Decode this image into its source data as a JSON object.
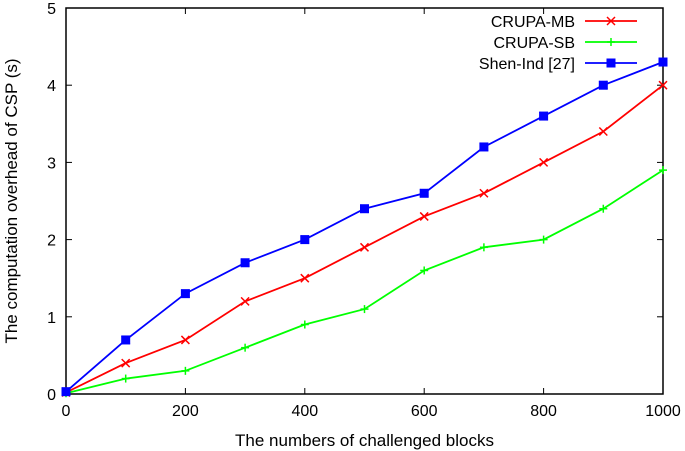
{
  "chart_data": {
    "type": "line",
    "title": "",
    "xlabel": "The numbers of challenged  blocks",
    "ylabel": "The computation overhead of CSP  (s)",
    "xlim": [
      0,
      1000
    ],
    "ylim": [
      0,
      5
    ],
    "xticks": [
      0,
      200,
      400,
      600,
      800,
      1000
    ],
    "yticks": [
      0,
      1,
      2,
      3,
      4,
      5
    ],
    "grid": false,
    "legend_position": "top-right",
    "x": [
      0,
      100,
      200,
      300,
      400,
      500,
      600,
      700,
      800,
      900,
      1000
    ],
    "series": [
      {
        "name": "CRUPA-MB",
        "color": "#ff0000",
        "marker": "x",
        "values": [
          0.02,
          0.4,
          0.7,
          1.2,
          1.5,
          1.9,
          2.3,
          2.6,
          3.0,
          3.4,
          4.0
        ]
      },
      {
        "name": "CRUPA-SB",
        "color": "#00ff00",
        "marker": "plus",
        "values": [
          0.01,
          0.2,
          0.3,
          0.6,
          0.9,
          1.1,
          1.6,
          1.9,
          2.0,
          2.4,
          2.9
        ]
      },
      {
        "name": "Shen-Ind [27]",
        "color": "#0000ff",
        "marker": "square-x",
        "values": [
          0.03,
          0.7,
          1.3,
          1.7,
          2.0,
          2.4,
          2.6,
          3.2,
          3.6,
          4.0,
          4.3
        ]
      }
    ]
  }
}
